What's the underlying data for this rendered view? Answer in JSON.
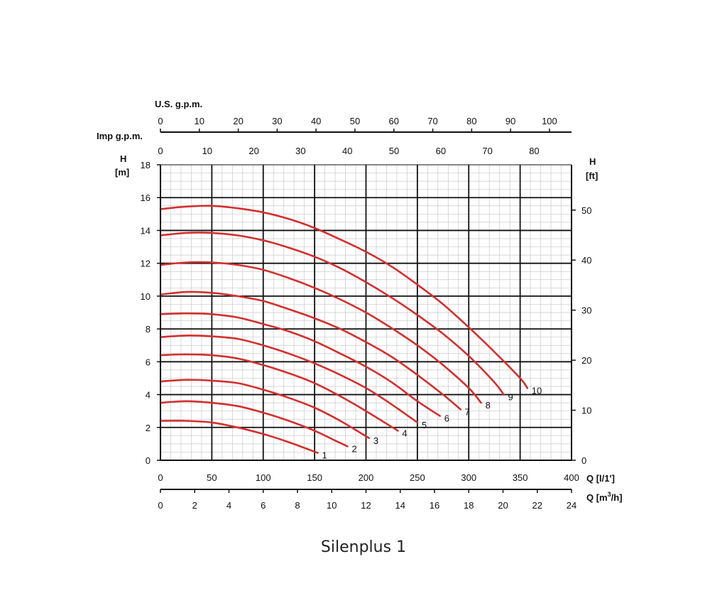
{
  "caption": "Silenplus 1",
  "chart_data": {
    "type": "line",
    "title": "",
    "axes": {
      "left": {
        "label_line1": "H",
        "label_line2": "[m]",
        "range": [
          0,
          18
        ],
        "ticks": [
          0,
          2,
          4,
          6,
          8,
          10,
          12,
          14,
          16,
          18
        ]
      },
      "right": {
        "label_line1": "H",
        "label_line2": "[ft]",
        "ticks": [
          0,
          10,
          20,
          30,
          40,
          50
        ],
        "ft_per_unit": 3.2808
      },
      "bottom_lps": {
        "label": "Q [l/1']",
        "range": [
          0,
          400
        ],
        "ticks": [
          0,
          50,
          100,
          150,
          200,
          250,
          300,
          350,
          400
        ]
      },
      "bottom_m3h": {
        "label_prefix": "Q [m",
        "label_sup": "3",
        "label_suffix": "/h]",
        "ticks": [
          0,
          2,
          4,
          6,
          8,
          10,
          12,
          14,
          16,
          18,
          20,
          22,
          24
        ],
        "range": [
          0,
          24
        ]
      },
      "top_us": {
        "label": "U.S. g.p.m.",
        "ticks": [
          0,
          10,
          20,
          30,
          40,
          50,
          60,
          70,
          80,
          90,
          100
        ],
        "lpm_per_unit": 3.7854
      },
      "top_imp": {
        "label": "Imp g.p.m.",
        "ticks": [
          0,
          10,
          20,
          30,
          40,
          50,
          60,
          70,
          80
        ],
        "lpm_per_unit": 4.5461
      }
    },
    "grid": true,
    "series_color": "#d32f2f",
    "series": [
      {
        "name": "1",
        "x": [
          0,
          25,
          50,
          75,
          100,
          125,
          153
        ],
        "y": [
          2.4,
          2.4,
          2.3,
          2.0,
          1.6,
          1.1,
          0.45
        ]
      },
      {
        "name": "2",
        "x": [
          0,
          25,
          50,
          75,
          100,
          125,
          150,
          170,
          182
        ],
        "y": [
          3.5,
          3.6,
          3.5,
          3.3,
          2.9,
          2.4,
          1.8,
          1.2,
          0.85
        ]
      },
      {
        "name": "3",
        "x": [
          0,
          25,
          50,
          75,
          100,
          125,
          150,
          175,
          203
        ],
        "y": [
          4.8,
          4.9,
          4.85,
          4.7,
          4.3,
          3.8,
          3.2,
          2.4,
          1.35
        ]
      },
      {
        "name": "4",
        "x": [
          0,
          25,
          50,
          75,
          100,
          125,
          150,
          175,
          200,
          231
        ],
        "y": [
          6.4,
          6.45,
          6.4,
          6.2,
          5.8,
          5.3,
          4.7,
          3.9,
          3.0,
          1.8
        ]
      },
      {
        "name": "5",
        "x": [
          0,
          25,
          50,
          75,
          100,
          125,
          150,
          175,
          200,
          225,
          250
        ],
        "y": [
          7.5,
          7.6,
          7.55,
          7.4,
          7.0,
          6.5,
          5.9,
          5.2,
          4.4,
          3.4,
          2.3
        ]
      },
      {
        "name": "6",
        "x": [
          0,
          25,
          50,
          75,
          100,
          125,
          150,
          175,
          200,
          225,
          250,
          272
        ],
        "y": [
          8.9,
          8.95,
          8.9,
          8.7,
          8.3,
          7.85,
          7.25,
          6.5,
          5.7,
          4.75,
          3.6,
          2.7
        ]
      },
      {
        "name": "7",
        "x": [
          0,
          25,
          50,
          75,
          100,
          125,
          150,
          175,
          200,
          225,
          250,
          275,
          292
        ],
        "y": [
          10.1,
          10.25,
          10.2,
          10.0,
          9.7,
          9.2,
          8.65,
          8.0,
          7.2,
          6.3,
          5.2,
          4.0,
          3.1
        ]
      },
      {
        "name": "8",
        "x": [
          0,
          25,
          50,
          75,
          100,
          125,
          150,
          175,
          200,
          225,
          250,
          275,
          300,
          312
        ],
        "y": [
          11.9,
          12.05,
          12.05,
          11.9,
          11.6,
          11.1,
          10.5,
          9.8,
          9.0,
          8.05,
          7.0,
          5.8,
          4.4,
          3.5
        ]
      },
      {
        "name": "9",
        "x": [
          0,
          25,
          50,
          75,
          100,
          125,
          150,
          175,
          200,
          225,
          250,
          275,
          300,
          325,
          334
        ],
        "y": [
          13.7,
          13.85,
          13.85,
          13.7,
          13.4,
          12.95,
          12.4,
          11.7,
          10.85,
          9.9,
          8.85,
          7.7,
          6.35,
          4.75,
          4.0
        ]
      },
      {
        "name": "10",
        "x": [
          0,
          25,
          50,
          75,
          100,
          125,
          150,
          175,
          200,
          225,
          250,
          275,
          300,
          325,
          350,
          357
        ],
        "y": [
          15.3,
          15.45,
          15.5,
          15.35,
          15.1,
          14.7,
          14.15,
          13.45,
          12.7,
          11.8,
          10.7,
          9.5,
          8.1,
          6.6,
          5.0,
          4.4
        ]
      }
    ]
  }
}
